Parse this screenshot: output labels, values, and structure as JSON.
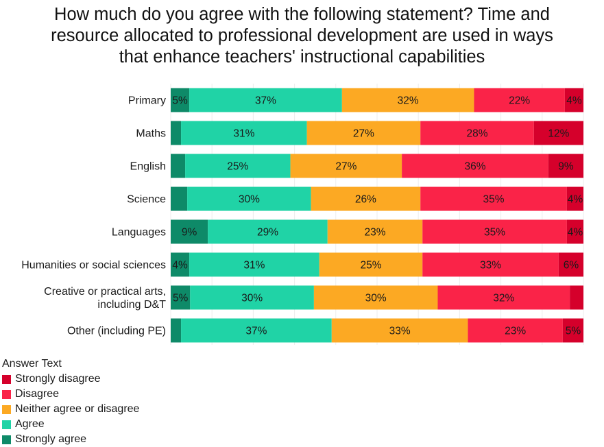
{
  "chart_data": {
    "type": "bar",
    "orientation": "horizontal",
    "stacked": true,
    "title_lines": [
      "How much do you agree with the following statement? Time and",
      "resource allocated to professional development are used in ways",
      "that enhance teachers' instructional capabilities"
    ],
    "categories": [
      "Primary",
      "Maths",
      "English",
      "Science",
      "Languages",
      "Humanities or social sciences",
      [
        "Creative or practical arts,",
        "including D&T"
      ],
      "Other (including PE)"
    ],
    "legend_title": "Answer Text",
    "series": [
      {
        "name": "Strongly agree",
        "color": "#0e8a68",
        "values": [
          0.045,
          0.025,
          0.035,
          0.04,
          0.09,
          0.045,
          0.047,
          0.025
        ],
        "labels": [
          "5%",
          "",
          "",
          "",
          "9%",
          "4%",
          "5%",
          ""
        ]
      },
      {
        "name": "Agree",
        "color": "#20d3a6",
        "values": [
          0.37,
          0.305,
          0.255,
          0.3,
          0.29,
          0.315,
          0.3,
          0.365
        ],
        "labels": [
          "37%",
          "31%",
          "25%",
          "30%",
          "29%",
          "31%",
          "30%",
          "37%"
        ]
      },
      {
        "name": "Neither agree or disagree",
        "color": "#fca923",
        "values": [
          0.32,
          0.275,
          0.27,
          0.265,
          0.23,
          0.25,
          0.3,
          0.33
        ],
        "labels": [
          "32%",
          "27%",
          "27%",
          "26%",
          "23%",
          "25%",
          "30%",
          "33%"
        ]
      },
      {
        "name": "Disagree",
        "color": "#fa2348",
        "values": [
          0.22,
          0.275,
          0.355,
          0.355,
          0.35,
          0.33,
          0.32,
          0.23
        ],
        "labels": [
          "22%",
          "28%",
          "36%",
          "35%",
          "35%",
          "33%",
          "32%",
          "23%"
        ]
      },
      {
        "name": "Strongly disagree",
        "color": "#d5002b",
        "values": [
          0.045,
          0.12,
          0.085,
          0.04,
          0.04,
          0.06,
          0.033,
          0.05
        ],
        "labels": [
          "4%",
          "12%",
          "9%",
          "4%",
          "4%",
          "6%",
          "",
          "5%"
        ]
      }
    ],
    "legend_order": [
      "Strongly disagree",
      "Disagree",
      "Neither agree or disagree",
      "Agree",
      "Strongly agree"
    ],
    "xlim": [
      0,
      1
    ],
    "grid": true,
    "legend_position": "bottom-left"
  }
}
